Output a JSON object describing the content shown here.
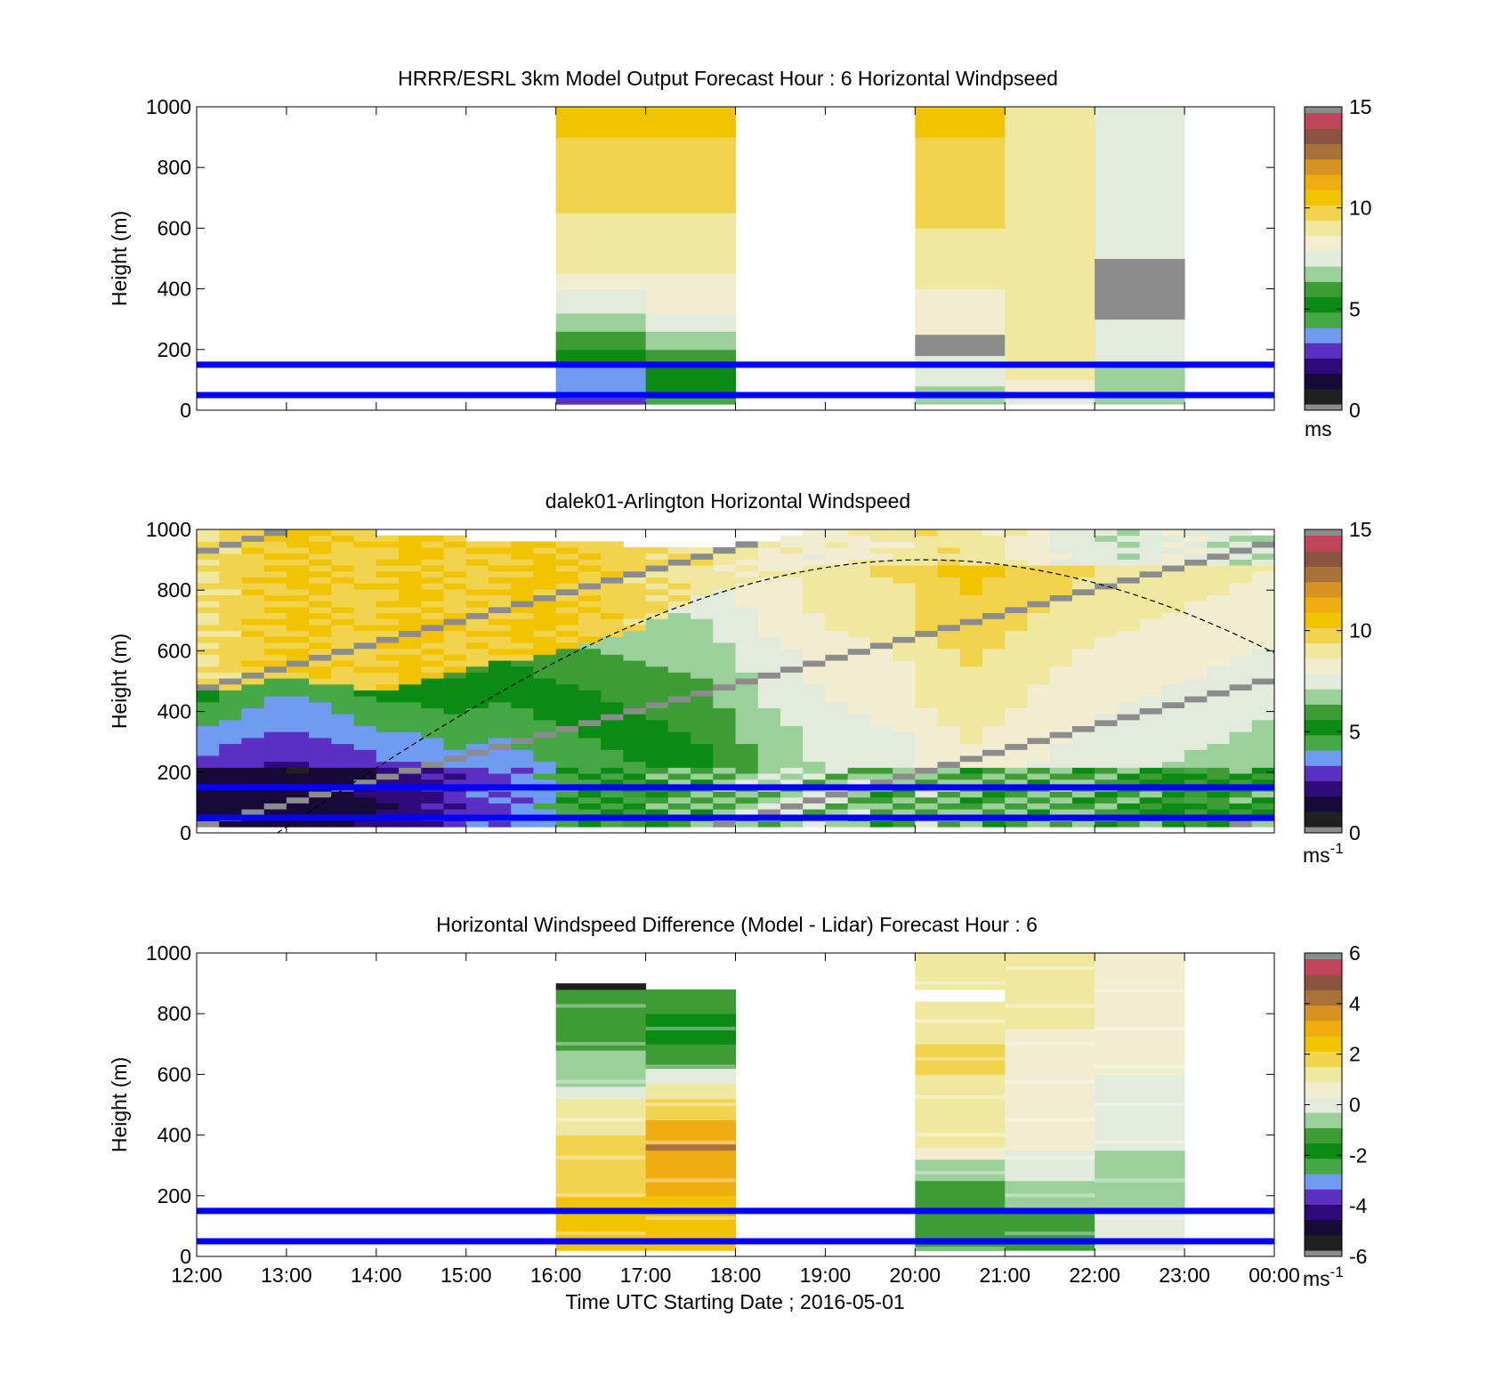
{
  "colors": {
    "background": "#ffffff",
    "reference_line": "#0000ff",
    "colormap": [
      "#202020",
      "#170938",
      "#2e0a7a",
      "#5a2fc2",
      "#6f9bf0",
      "#46a845",
      "#0b8a14",
      "#3d9c35",
      "#9cd09a",
      "#e3ebdc",
      "#f2ecd0",
      "#f1e89f",
      "#f1d34d",
      "#f1c300",
      "#efad12",
      "#d7921f",
      "#a87238",
      "#8b5440",
      "#c0455a",
      "#ee3f68",
      "#8c8c8c"
    ]
  },
  "axes": {
    "x_tick_labels": [
      "12:00",
      "13:00",
      "14:00",
      "15:00",
      "16:00",
      "17:00",
      "18:00",
      "19:00",
      "20:00",
      "21:00",
      "22:00",
      "23:00",
      "00:00"
    ],
    "y_tick_labels": [
      "0",
      "200",
      "400",
      "600",
      "800",
      "1000"
    ],
    "y_label": "Height (m)",
    "x_label": "Time UTC  Starting Date ; 2016-05-01"
  },
  "chart_data": [
    {
      "type": "heatmap",
      "title": "HRRR/ESRL 3km Model Output   Forecast Hour : 6 Horizontal Windpseed",
      "ylabel": "Height (m)",
      "xlim": [
        "12:00",
        "00:00"
      ],
      "ylim": [
        0,
        1000
      ],
      "grid": false,
      "reference_lines_m": [
        50,
        150
      ],
      "colorbar": {
        "range": [
          0,
          15
        ],
        "tick_labels": [
          "0",
          "5",
          "10",
          "15"
        ],
        "unit_base": "ms",
        "unit_exp": ""
      },
      "columns": [
        {
          "start": 16,
          "end": 17,
          "segments": [
            [
              20,
              40,
              2.5
            ],
            [
              40,
              70,
              3.2
            ],
            [
              70,
              150,
              3.2
            ],
            [
              150,
              200,
              5.0
            ],
            [
              200,
              260,
              5.6
            ],
            [
              260,
              320,
              6.5
            ],
            [
              320,
              400,
              7.5
            ],
            [
              400,
              450,
              8.0
            ],
            [
              450,
              550,
              9.0
            ],
            [
              550,
              650,
              9.2
            ],
            [
              650,
              750,
              9.6
            ],
            [
              750,
              900,
              10.0
            ],
            [
              900,
              1000,
              10.8
            ]
          ]
        },
        {
          "start": 17,
          "end": 18,
          "segments": [
            [
              20,
              40,
              4.0
            ],
            [
              40,
              150,
              5.2
            ],
            [
              150,
              200,
              6.0
            ],
            [
              200,
              260,
              6.8
            ],
            [
              260,
              320,
              7.3
            ],
            [
              320,
              400,
              8.2
            ],
            [
              400,
              450,
              8.6
            ],
            [
              450,
              550,
              9.1
            ],
            [
              550,
              650,
              9.3
            ],
            [
              650,
              750,
              9.6
            ],
            [
              750,
              900,
              10.0
            ],
            [
              900,
              1000,
              10.8
            ]
          ]
        },
        {
          "start": 20,
          "end": 21,
          "segments": [
            [
              20,
              40,
              6.5
            ],
            [
              40,
              80,
              6.8
            ],
            [
              80,
              150,
              7.2
            ],
            [
              150,
              180,
              7.4
            ],
            [
              180,
              250,
              0.0
            ],
            [
              250,
              300,
              8.0
            ],
            [
              300,
              350,
              8.3
            ],
            [
              350,
              400,
              8.6
            ],
            [
              400,
              450,
              8.8
            ],
            [
              450,
              500,
              9.0
            ],
            [
              500,
              600,
              9.3
            ],
            [
              600,
              700,
              9.6
            ],
            [
              700,
              800,
              9.8
            ],
            [
              800,
              900,
              10.0
            ],
            [
              900,
              1000,
              10.3
            ]
          ]
        },
        {
          "start": 21,
          "end": 22,
          "segments": [
            [
              20,
              50,
              7.6
            ],
            [
              50,
              100,
              8.3
            ],
            [
              100,
              150,
              8.9
            ],
            [
              150,
              250,
              9.3
            ],
            [
              250,
              1000,
              9.4
            ]
          ]
        },
        {
          "start": 22,
          "end": 23,
          "segments": [
            [
              20,
              150,
              7.0
            ],
            [
              150,
              300,
              7.2
            ],
            [
              300,
              500,
              0.0
            ],
            [
              500,
              1000,
              7.5
            ]
          ]
        }
      ]
    },
    {
      "type": "heatmap",
      "title": "dalek01-Arlington  Horizontal Windspeed",
      "ylabel": "Height (m)",
      "xlim": [
        "12:00",
        "00:00"
      ],
      "ylim": [
        0,
        1000
      ],
      "grid": false,
      "reference_lines_m": [
        50,
        150
      ],
      "colorbar": {
        "range": [
          0,
          15
        ],
        "tick_labels": [
          "0",
          "5",
          "10",
          "15"
        ],
        "unit_base": "ms",
        "unit_exp": "-1"
      },
      "profile": {
        "start_hour": 12,
        "step_hours": 0.25,
        "low_speed_ms": [
          1.3,
          1.3,
          1.1,
          1.0,
          0.9,
          1.0,
          1.2,
          1.5,
          1.8,
          2.0,
          2.3,
          2.6,
          2.9,
          3.2,
          3.6,
          4.0,
          4.5,
          5.0,
          5.2,
          5.5,
          5.8,
          6.2,
          6.4,
          6.6,
          6.8,
          7.0,
          7.1,
          7.2,
          7.1,
          6.8,
          6.5,
          6.4,
          6.8,
          6.6,
          6.3,
          6.1,
          6.3,
          6.5,
          6.7,
          6.4,
          6.2,
          6.0,
          5.8,
          5.6,
          5.5,
          5.7,
          5.9,
          6.0
        ],
        "mid_speed_ms": [
          2.8,
          2.5,
          2.3,
          2.2,
          2.2,
          2.3,
          2.5,
          2.7,
          3.0,
          3.0,
          3.2,
          3.5,
          3.4,
          3.3,
          3.5,
          3.8,
          4.0,
          4.2,
          4.4,
          4.6,
          4.8,
          5.0,
          5.2,
          5.6,
          6.0,
          6.4,
          6.6,
          7.0,
          7.2,
          7.3,
          7.4,
          7.5,
          8.0,
          8.2,
          8.4,
          8.2,
          8.0,
          7.8,
          7.6,
          7.4,
          7.3,
          7.2,
          7.1,
          7.0,
          6.9,
          6.8,
          6.7,
          6.6
        ],
        "upper_speed_ms": [
          9.5,
          9.8,
          10.2,
          10.3,
          10.5,
          10.4,
          10.2,
          10.0,
          10.3,
          10.6,
          10.4,
          10.2,
          10.1,
          10.3,
          10.5,
          10.6,
          10.4,
          10.2,
          10.0,
          9.8,
          9.6,
          9.4,
          9.2,
          9.0,
          8.8,
          8.6,
          8.4,
          8.2,
          8.4,
          8.6,
          8.8,
          9.0,
          9.2,
          9.4,
          9.2,
          9.0,
          8.6,
          8.2,
          7.8,
          7.6,
          7.4,
          7.2,
          7.6,
          8.0,
          7.8,
          7.5,
          7.2,
          7.0
        ],
        "transition_height_m": [
          460,
          460,
          480,
          500,
          500,
          490,
          480,
          470,
          470,
          480,
          500,
          520,
          530,
          550,
          560,
          580,
          600,
          620,
          640,
          660,
          700,
          740,
          780,
          800,
          820,
          840,
          860,
          880,
          880,
          880,
          880,
          880,
          880,
          880,
          880,
          880,
          880,
          880,
          880,
          880,
          880,
          880,
          880,
          880,
          880,
          880,
          880,
          880
        ],
        "top_height_m": [
          990,
          1000,
          1000,
          1000,
          1000,
          1000,
          990,
          990,
          980,
          980,
          970,
          970,
          960,
          960,
          960,
          950,
          950,
          950,
          950,
          940,
          940,
          940,
          940,
          940,
          950,
          960,
          980,
          1000,
          1000,
          990,
          990,
          990,
          1000,
          1000,
          990,
          990,
          1000,
          990,
          990,
          990,
          990,
          990,
          990,
          990,
          990,
          990,
          990,
          980
        ]
      },
      "curve": {
        "style": "dashed",
        "peak_hour": 20.1,
        "peak_height_m": 900,
        "zero_hour": 12.9,
        "end_hour": 24.0,
        "end_height_m": 555
      }
    },
    {
      "type": "heatmap",
      "title": "Horizontal Windspeed Difference (Model - Lidar) Forecast Hour : 6",
      "ylabel": "Height (m)",
      "xlabel": "Time UTC  Starting Date ; 2016-05-01",
      "xlim": [
        "12:00",
        "00:00"
      ],
      "ylim": [
        0,
        1000
      ],
      "grid": false,
      "reference_lines_m": [
        50,
        150
      ],
      "colorbar": {
        "range": [
          -6,
          6
        ],
        "tick_labels": [
          "-6",
          "-4",
          "-2",
          "0",
          "2",
          "4",
          "6"
        ],
        "unit_base": "ms",
        "unit_exp": "-1"
      },
      "columns": [
        {
          "start": 16,
          "end": 17,
          "segments": [
            [
              20,
              100,
              2.6
            ],
            [
              100,
              200,
              2.4
            ],
            [
              200,
              300,
              2.0
            ],
            [
              300,
              400,
              1.8
            ],
            [
              400,
              480,
              1.5
            ],
            [
              480,
              520,
              1.2
            ],
            [
              520,
              560,
              0.3
            ],
            [
              560,
              620,
              -0.4
            ],
            [
              620,
              680,
              -0.8
            ],
            [
              680,
              750,
              -1.5
            ],
            [
              750,
              880,
              -1.4
            ],
            [
              880,
              900,
              -5.9
            ]
          ]
        },
        {
          "start": 17,
          "end": 18,
          "segments": [
            [
              20,
              100,
              2.4
            ],
            [
              100,
              200,
              2.8
            ],
            [
              200,
              300,
              3.2
            ],
            [
              300,
              350,
              3.4
            ],
            [
              350,
              370,
              4.5
            ],
            [
              370,
              450,
              3.3
            ],
            [
              450,
              520,
              2.2
            ],
            [
              520,
              570,
              1.2
            ],
            [
              570,
              620,
              -0.3
            ],
            [
              620,
              700,
              -1.0
            ],
            [
              700,
              800,
              -1.8
            ],
            [
              800,
              880,
              -1.2
            ]
          ]
        },
        {
          "start": 20,
          "end": 21,
          "segments": [
            [
              20,
              150,
              -1.5
            ],
            [
              150,
              250,
              -1.0
            ],
            [
              250,
              320,
              -0.5
            ],
            [
              320,
              360,
              0.6
            ],
            [
              360,
              400,
              1.0
            ],
            [
              400,
              450,
              1.2
            ],
            [
              450,
              520,
              1.5
            ],
            [
              520,
              600,
              1.3
            ],
            [
              600,
              700,
              1.6
            ],
            [
              700,
              800,
              1.5
            ],
            [
              800,
              840,
              1.4
            ],
            [
              880,
              1000,
              1.2
            ]
          ]
        },
        {
          "start": 21,
          "end": 22,
          "segments": [
            [
              20,
              150,
              -1.2
            ],
            [
              150,
              250,
              -0.6
            ],
            [
              250,
              350,
              0.2
            ],
            [
              350,
              450,
              0.4
            ],
            [
              450,
              550,
              0.6
            ],
            [
              550,
              650,
              0.8
            ],
            [
              650,
              750,
              0.9
            ],
            [
              750,
              850,
              1.0
            ],
            [
              850,
              950,
              1.2
            ],
            [
              950,
              1000,
              1.4
            ]
          ]
        },
        {
          "start": 22,
          "end": 23,
          "segments": [
            [
              20,
              150,
              -0.3
            ],
            [
              150,
              250,
              -0.5
            ],
            [
              250,
              350,
              -0.4
            ],
            [
              350,
              450,
              0.2
            ],
            [
              450,
              600,
              0.3
            ],
            [
              600,
              750,
              0.4
            ],
            [
              750,
              900,
              0.4
            ],
            [
              900,
              1000,
              0.6
            ]
          ]
        }
      ]
    }
  ]
}
